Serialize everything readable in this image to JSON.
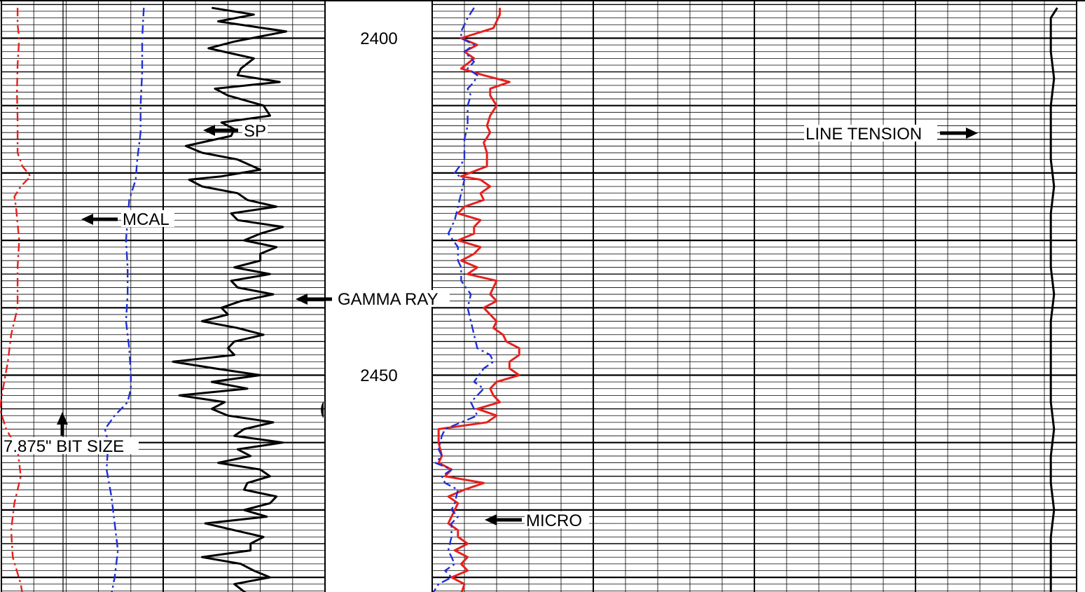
{
  "chart_data": {
    "type": "line",
    "title": "",
    "depth_ticks": [
      {
        "depth": 2400,
        "label": "2400"
      },
      {
        "depth": 2450,
        "label": "2450"
      }
    ],
    "colors": {
      "red": "#e8201c",
      "blue": "#1f2fd8",
      "black": "#000000"
    },
    "annotations": [
      {
        "id": "sp",
        "text": "SP"
      },
      {
        "id": "mcal",
        "text": "MCAL"
      },
      {
        "id": "gamma",
        "text": "GAMMA RAY"
      },
      {
        "id": "bitsize",
        "text": "7.875\" BIT SIZE"
      },
      {
        "id": "micro",
        "text": "MICRO"
      },
      {
        "id": "tension",
        "text": "LINE TENSION"
      }
    ],
    "series": [
      {
        "id": "mcal",
        "color": "#e8201c",
        "style": "dashdot",
        "points": [
          [
            2395.5,
            0.5
          ],
          [
            2398,
            0.5
          ],
          [
            2400,
            0.55
          ],
          [
            2404,
            0.5
          ],
          [
            2408,
            0.48
          ],
          [
            2412,
            0.5
          ],
          [
            2417,
            0.5
          ],
          [
            2419,
            0.65
          ],
          [
            2420.5,
            0.9
          ],
          [
            2422,
            0.6
          ],
          [
            2423.5,
            0.4
          ],
          [
            2425,
            0.45
          ],
          [
            2430,
            0.55
          ],
          [
            2434,
            0.5
          ],
          [
            2440,
            0.5
          ],
          [
            2444,
            0.3
          ],
          [
            2448,
            0.2
          ],
          [
            2452,
            0.05
          ],
          [
            2455,
            -0.05
          ],
          [
            2458,
            0.15
          ],
          [
            2461,
            0.5
          ],
          [
            2465,
            0.6
          ],
          [
            2469,
            0.4
          ],
          [
            2473,
            0.3
          ],
          [
            2477,
            0.35
          ],
          [
            2481,
            0.6
          ],
          [
            2482.5,
            0.65
          ]
        ]
      },
      {
        "id": "sp",
        "color": "#1f2fd8",
        "style": "dashdot",
        "points": [
          [
            2395.5,
            4.4
          ],
          [
            2400,
            4.35
          ],
          [
            2405,
            4.35
          ],
          [
            2410,
            4.3
          ],
          [
            2414,
            4.3
          ],
          [
            2418,
            4.2
          ],
          [
            2421,
            4.15
          ],
          [
            2424,
            3.95
          ],
          [
            2427,
            3.9
          ],
          [
            2430,
            3.85
          ],
          [
            2434,
            3.9
          ],
          [
            2438,
            3.9
          ],
          [
            2442,
            3.85
          ],
          [
            2446,
            3.95
          ],
          [
            2450,
            4.0
          ],
          [
            2452,
            4.0
          ],
          [
            2454,
            3.9
          ],
          [
            2456,
            3.5
          ],
          [
            2458,
            3.2
          ],
          [
            2460,
            3.3
          ],
          [
            2464,
            3.25
          ],
          [
            2468,
            3.4
          ],
          [
            2472,
            3.5
          ],
          [
            2476,
            3.6
          ],
          [
            2480,
            3.5
          ],
          [
            2482.5,
            3.4
          ]
        ]
      },
      {
        "id": "gamma",
        "color": "#000000",
        "style": "solid",
        "points": [
          [
            2395.5,
            6.5
          ],
          [
            2396.5,
            7.8
          ],
          [
            2397.5,
            6.7
          ],
          [
            2399,
            8.8
          ],
          [
            2400.5,
            7.2
          ],
          [
            2401.5,
            6.4
          ],
          [
            2403,
            7.8
          ],
          [
            2404.5,
            7.4
          ],
          [
            2405.5,
            7.3
          ],
          [
            2406.5,
            8.6
          ],
          [
            2407.5,
            6.6
          ],
          [
            2408.5,
            7.0
          ],
          [
            2410,
            8.1
          ],
          [
            2411.5,
            8.3
          ],
          [
            2412.5,
            6.8
          ],
          [
            2413.5,
            7.2
          ],
          [
            2414.5,
            7.1
          ],
          [
            2416,
            5.7
          ],
          [
            2417,
            6.2
          ],
          [
            2418,
            7.3
          ],
          [
            2419.5,
            8.0
          ],
          [
            2420.5,
            6.8
          ],
          [
            2421,
            5.8
          ],
          [
            2422,
            6.2
          ],
          [
            2423,
            7.3
          ],
          [
            2424,
            7.6
          ],
          [
            2425,
            8.5
          ],
          [
            2426,
            7.1
          ],
          [
            2427,
            7.3
          ],
          [
            2428,
            8.7
          ],
          [
            2429,
            8.0
          ],
          [
            2430,
            7.5
          ],
          [
            2431,
            8.5
          ],
          [
            2432,
            8.0
          ],
          [
            2433,
            8.0
          ],
          [
            2434,
            7.2
          ],
          [
            2435,
            8.3
          ],
          [
            2436,
            7.1
          ],
          [
            2437,
            7.3
          ],
          [
            2438,
            8.4
          ],
          [
            2439,
            7.4
          ],
          [
            2440,
            6.8
          ],
          [
            2441,
            7.0
          ],
          [
            2442,
            6.2
          ],
          [
            2443,
            7.3
          ],
          [
            2444,
            8.1
          ],
          [
            2445,
            7.2
          ],
          [
            2446,
            7.0
          ],
          [
            2447,
            7.2
          ],
          [
            2448,
            5.3
          ],
          [
            2449,
            6.6
          ],
          [
            2450,
            8.0
          ],
          [
            2451,
            6.5
          ],
          [
            2452,
            7.6
          ],
          [
            2453,
            5.5
          ],
          [
            2454,
            6.9
          ],
          [
            2455,
            6.5
          ],
          [
            2456,
            7.0
          ],
          [
            2457,
            8.4
          ],
          [
            2458,
            7.5
          ],
          [
            2459,
            7.2
          ],
          [
            2460,
            8.7
          ],
          [
            2461,
            7.3
          ],
          [
            2462,
            7.7
          ],
          [
            2463,
            6.7
          ],
          [
            2464,
            8.0
          ],
          [
            2465,
            8.3
          ],
          [
            2466,
            7.6
          ],
          [
            2467,
            7.5
          ],
          [
            2468,
            8.5
          ],
          [
            2469,
            8.3
          ],
          [
            2470,
            7.5
          ],
          [
            2471,
            8.2
          ],
          [
            2472,
            6.3
          ],
          [
            2473,
            7.2
          ],
          [
            2474,
            8.1
          ],
          [
            2475,
            7.7
          ],
          [
            2476,
            7.7
          ],
          [
            2477,
            6.2
          ],
          [
            2478,
            7.4
          ],
          [
            2479,
            7.8
          ],
          [
            2480,
            8.3
          ],
          [
            2481,
            7.2
          ],
          [
            2482.5,
            7.6
          ]
        ]
      },
      {
        "id": "micro_red",
        "color": "#e8201c",
        "style": "solid",
        "points": [
          [
            2395.5,
            2.1
          ],
          [
            2396.5,
            2.1
          ],
          [
            2397.5,
            2.0
          ],
          [
            2398.5,
            1.9
          ],
          [
            2400,
            0.9
          ],
          [
            2401,
            1.4
          ],
          [
            2402,
            1.0
          ],
          [
            2403,
            1.3
          ],
          [
            2404.5,
            0.9
          ],
          [
            2405.5,
            1.6
          ],
          [
            2406.5,
            2.4
          ],
          [
            2407.5,
            1.8
          ],
          [
            2408.5,
            1.8
          ],
          [
            2410,
            2.0
          ],
          [
            2411.5,
            1.8
          ],
          [
            2413,
            1.7
          ],
          [
            2414,
            1.8
          ],
          [
            2415.5,
            1.6
          ],
          [
            2417,
            1.7
          ],
          [
            2419,
            1.7
          ],
          [
            2420.5,
            0.9
          ],
          [
            2421,
            1.5
          ],
          [
            2422,
            1.8
          ],
          [
            2423,
            1.5
          ],
          [
            2424,
            1.6
          ],
          [
            2425,
            1.0
          ],
          [
            2426,
            0.8
          ],
          [
            2427,
            1.5
          ],
          [
            2428,
            1.3
          ],
          [
            2429,
            1.3
          ],
          [
            2430,
            0.8
          ],
          [
            2431,
            1.5
          ],
          [
            2432,
            1.3
          ],
          [
            2433,
            0.9
          ],
          [
            2434,
            1.4
          ],
          [
            2435,
            1.1
          ],
          [
            2436,
            2.0
          ],
          [
            2437,
            1.9
          ],
          [
            2438,
            1.8
          ],
          [
            2439,
            2.0
          ],
          [
            2440,
            1.6
          ],
          [
            2441,
            1.8
          ],
          [
            2442,
            2.0
          ],
          [
            2443,
            1.9
          ],
          [
            2444,
            2.2
          ],
          [
            2445,
            2.3
          ],
          [
            2446,
            2.7
          ],
          [
            2447,
            2.7
          ],
          [
            2448,
            2.4
          ],
          [
            2449,
            2.4
          ],
          [
            2450,
            2.7
          ],
          [
            2451,
            2.0
          ],
          [
            2452,
            1.8
          ],
          [
            2453,
            1.9
          ],
          [
            2454,
            2.1
          ],
          [
            2455,
            1.4
          ],
          [
            2456,
            2.0
          ],
          [
            2457,
            1.7
          ],
          [
            2458,
            0.2
          ],
          [
            2459,
            0.2
          ],
          [
            2460,
            0.2
          ],
          [
            2462,
            0.3
          ],
          [
            2463,
            0.2
          ],
          [
            2464,
            0.6
          ],
          [
            2465,
            0.4
          ],
          [
            2466,
            1.6
          ],
          [
            2467,
            1.0
          ],
          [
            2468,
            0.5
          ],
          [
            2469,
            0.8
          ],
          [
            2470,
            0.7
          ],
          [
            2471,
            0.6
          ],
          [
            2472,
            0.5
          ],
          [
            2473,
            0.8
          ],
          [
            2474,
            0.8
          ],
          [
            2475,
            1.1
          ],
          [
            2476,
            0.7
          ],
          [
            2477,
            1.1
          ],
          [
            2478,
            0.9
          ],
          [
            2479,
            1.1
          ],
          [
            2480,
            0.6
          ],
          [
            2481,
            1.0
          ],
          [
            2482.5,
            0.9
          ]
        ]
      },
      {
        "id": "micro_blue",
        "color": "#1f2fd8",
        "style": "dashdot",
        "points": [
          [
            2395.5,
            1.3
          ],
          [
            2397,
            1.1
          ],
          [
            2399,
            0.9
          ],
          [
            2400,
            0.9
          ],
          [
            2401,
            1.3
          ],
          [
            2402,
            1.0
          ],
          [
            2403.5,
            1.3
          ],
          [
            2404.5,
            1.1
          ],
          [
            2405.5,
            1.4
          ],
          [
            2406.5,
            1.3
          ],
          [
            2407.5,
            1.1
          ],
          [
            2408.5,
            1.2
          ],
          [
            2410,
            1.1
          ],
          [
            2413,
            1.1
          ],
          [
            2415,
            1.0
          ],
          [
            2418,
            1.0
          ],
          [
            2420,
            0.7
          ],
          [
            2421,
            1.0
          ],
          [
            2423,
            0.9
          ],
          [
            2425,
            0.8
          ],
          [
            2427,
            0.7
          ],
          [
            2429,
            0.5
          ],
          [
            2431,
            0.8
          ],
          [
            2433,
            0.8
          ],
          [
            2434,
            0.9
          ],
          [
            2436,
            0.9
          ],
          [
            2438,
            1.2
          ],
          [
            2440,
            1.1
          ],
          [
            2442,
            1.2
          ],
          [
            2444,
            1.3
          ],
          [
            2446,
            1.4
          ],
          [
            2447,
            1.8
          ],
          [
            2448,
            1.9
          ],
          [
            2449,
            1.6
          ],
          [
            2451,
            1.3
          ],
          [
            2452,
            1.6
          ],
          [
            2454,
            1.2
          ],
          [
            2456,
            1.4
          ],
          [
            2458,
            0.4
          ],
          [
            2459,
            0.3
          ],
          [
            2461,
            0.2
          ],
          [
            2462,
            0.3
          ],
          [
            2463,
            0.1
          ],
          [
            2464,
            0.6
          ],
          [
            2465,
            0.3
          ],
          [
            2466,
            0.4
          ],
          [
            2467,
            0.8
          ],
          [
            2469,
            0.7
          ],
          [
            2470,
            0.6
          ],
          [
            2471,
            0.8
          ],
          [
            2472,
            0.6
          ],
          [
            2474,
            0.6
          ],
          [
            2476,
            0.5
          ],
          [
            2478,
            0.7
          ],
          [
            2479,
            0.4
          ],
          [
            2480,
            0.6
          ],
          [
            2481,
            0.2
          ],
          [
            2482.5,
            0.0
          ]
        ]
      },
      {
        "id": "tension",
        "color": "#000000",
        "style": "solid",
        "points": [
          [
            2395.5,
            9.7
          ],
          [
            2397,
            9.6
          ],
          [
            2399,
            9.6
          ],
          [
            2402,
            9.6
          ],
          [
            2406,
            9.65
          ],
          [
            2410,
            9.6
          ],
          [
            2414,
            9.6
          ],
          [
            2418,
            9.6
          ],
          [
            2422,
            9.65
          ],
          [
            2426,
            9.6
          ],
          [
            2430,
            9.6
          ],
          [
            2434,
            9.6
          ],
          [
            2438,
            9.65
          ],
          [
            2442,
            9.6
          ],
          [
            2446,
            9.6
          ],
          [
            2450,
            9.6
          ],
          [
            2454,
            9.6
          ],
          [
            2458,
            9.65
          ],
          [
            2462,
            9.6
          ],
          [
            2466,
            9.6
          ],
          [
            2470,
            9.65
          ],
          [
            2474,
            9.6
          ],
          [
            2478,
            9.6
          ],
          [
            2482.5,
            9.6
          ]
        ]
      }
    ]
  }
}
